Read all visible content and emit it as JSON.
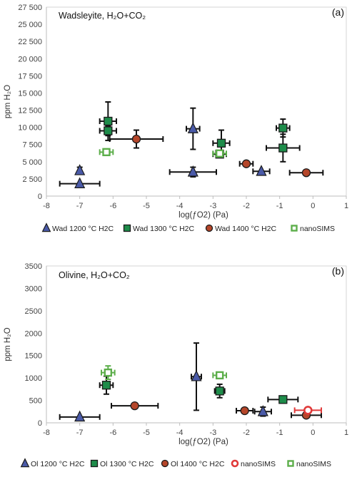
{
  "colors": {
    "blue": "#4a5aa8",
    "green": "#1e8c4a",
    "brown": "#b5462a",
    "nano_green": "#5cae4a",
    "nano_red": "#e03a3a",
    "err": "#111111"
  },
  "chart_data": [
    {
      "type": "scatter",
      "title": "Wadsleyite, H₂O+CO₂",
      "panel_label": "(a)",
      "xlabel": "log(ƒO2) (Pa)",
      "ylabel": "ppm H₂O",
      "xlim": [
        -8,
        1
      ],
      "ylim": [
        0,
        27500
      ],
      "xticks": [
        -8,
        -7,
        -6,
        -5,
        -4,
        -3,
        -2,
        -1,
        0,
        1
      ],
      "yticks": [
        0,
        2500,
        5000,
        7500,
        10000,
        12500,
        15000,
        17500,
        20000,
        22500,
        25000,
        27500
      ],
      "ytick_labels": [
        "0",
        "2 500",
        "5 000",
        "7 500",
        "10 000",
        "12 500",
        "15 000",
        "17 500",
        "20 000",
        "22 500",
        "25 000",
        "27 500"
      ],
      "legend_position": "bottom",
      "series": [
        {
          "name": "Wad 1200 °C H2C",
          "marker": "triangle",
          "color": "blue",
          "points": [
            {
              "x": -7.0,
              "y": 3700,
              "xerr": [
                0,
                0
              ],
              "yerr": [
                500,
                500
              ]
            },
            {
              "x": -7.0,
              "y": 1800,
              "xerr": [
                0.6,
                0.6
              ],
              "yerr": [
                0,
                0
              ]
            },
            {
              "x": -3.6,
              "y": 9800,
              "xerr": [
                0.2,
                0.2
              ],
              "yerr": [
                3000,
                3000
              ]
            },
            {
              "x": -3.6,
              "y": 3500,
              "xerr": [
                0.7,
                0.7
              ],
              "yerr": [
                700,
                700
              ]
            },
            {
              "x": -1.55,
              "y": 3600,
              "xerr": [
                0.25,
                0.25
              ],
              "yerr": [
                0,
                0
              ]
            }
          ]
        },
        {
          "name": "Wad 1300 °C H2C",
          "marker": "square",
          "color": "green",
          "points": [
            {
              "x": -6.15,
              "y": 10900,
              "xerr": [
                0.25,
                0.25
              ],
              "yerr": [
                2800,
                2800
              ]
            },
            {
              "x": -6.15,
              "y": 9500,
              "xerr": [
                0.25,
                0.25
              ],
              "yerr": [
                700,
                700
              ]
            },
            {
              "x": -2.75,
              "y": 7700,
              "xerr": [
                0.25,
                0.25
              ],
              "yerr": [
                1900,
                1900
              ]
            },
            {
              "x": -2.8,
              "y": 6100,
              "xerr": [
                0.2,
                0.2
              ],
              "yerr": [
                0,
                0
              ]
            },
            {
              "x": -0.9,
              "y": 9900,
              "xerr": [
                0.2,
                0.2
              ],
              "yerr": [
                1300,
                1300
              ]
            },
            {
              "x": -0.9,
              "y": 7000,
              "xerr": [
                0.5,
                0.5
              ],
              "yerr": [
                2000,
                2000
              ]
            }
          ]
        },
        {
          "name": "Wad 1400 °C H2C",
          "marker": "circle",
          "color": "brown",
          "points": [
            {
              "x": -5.3,
              "y": 8300,
              "xerr": [
                0.8,
                0.8
              ],
              "yerr": [
                1300,
                1300
              ]
            },
            {
              "x": -2.0,
              "y": 4700,
              "xerr": [
                0.2,
                0.2
              ],
              "yerr": [
                0,
                0
              ]
            },
            {
              "x": -0.2,
              "y": 3400,
              "xerr": [
                0.5,
                0.5
              ],
              "yerr": [
                0,
                0
              ]
            }
          ]
        },
        {
          "name": "nanoSIMS",
          "marker": "open-square",
          "color": "nano_green",
          "points": [
            {
              "x": -6.2,
              "y": 6400,
              "xerr": [
                0.2,
                0.2
              ],
              "yerr": [
                0,
                0
              ]
            },
            {
              "x": -2.8,
              "y": 6200,
              "xerr": [
                0.2,
                0.2
              ],
              "yerr": [
                0,
                0
              ]
            }
          ]
        }
      ]
    },
    {
      "type": "scatter",
      "title": "Olivine, H₂O+CO₂",
      "panel_label": "(b)",
      "xlabel": "log(ƒO2) (Pa)",
      "ylabel": "ppm H₂O",
      "xlim": [
        -8,
        1
      ],
      "ylim": [
        0,
        3500
      ],
      "xticks": [
        -8,
        -7,
        -6,
        -5,
        -4,
        -3,
        -2,
        -1,
        0,
        1
      ],
      "yticks": [
        0,
        500,
        1000,
        1500,
        2000,
        2500,
        3000,
        3500
      ],
      "ytick_labels": [
        "0",
        "500",
        "1000",
        "1500",
        "2000",
        "2500",
        "3000",
        "3500"
      ],
      "legend_position": "bottom",
      "series": [
        {
          "name": "Ol 1200 °C H2C",
          "marker": "triangle",
          "color": "blue",
          "points": [
            {
              "x": -7.0,
              "y": 130,
              "xerr": [
                0.6,
                0.6
              ],
              "yerr": [
                0,
                0
              ]
            },
            {
              "x": -3.5,
              "y": 1030,
              "xerr": [
                0.15,
                0.15
              ],
              "yerr": [
                750,
                750
              ]
            },
            {
              "x": -1.5,
              "y": 250,
              "xerr": [
                0.25,
                0.25
              ],
              "yerr": [
                100,
                100
              ]
            }
          ]
        },
        {
          "name": "Ol 1300 °C H2C",
          "marker": "square",
          "color": "green",
          "points": [
            {
              "x": -6.2,
              "y": 840,
              "xerr": [
                0.2,
                0.2
              ],
              "yerr": [
                200,
                200
              ]
            },
            {
              "x": -2.8,
              "y": 710,
              "xerr": [
                0.15,
                0.15
              ],
              "yerr": [
                150,
                150
              ]
            },
            {
              "x": -0.9,
              "y": 520,
              "xerr": [
                0.45,
                0.45
              ],
              "yerr": [
                0,
                0
              ]
            }
          ]
        },
        {
          "name": "Ol 1400 °C H2C",
          "marker": "circle",
          "color": "brown",
          "points": [
            {
              "x": -5.35,
              "y": 380,
              "xerr": [
                0.7,
                0.7
              ],
              "yerr": [
                0,
                0
              ]
            },
            {
              "x": -2.05,
              "y": 270,
              "xerr": [
                0.25,
                0.25
              ],
              "yerr": [
                0,
                0
              ]
            },
            {
              "x": -0.2,
              "y": 170,
              "xerr": [
                0.45,
                0.45
              ],
              "yerr": [
                0,
                0
              ]
            }
          ]
        },
        {
          "name": "nanoSIMS",
          "marker": "open-circle",
          "color": "nano_red",
          "points": [
            {
              "x": -0.15,
              "y": 280,
              "xerr": [
                0.4,
                0.4
              ],
              "yerr": [
                0,
                0
              ]
            }
          ]
        },
        {
          "name": "nanoSIMS",
          "marker": "open-square",
          "color": "nano_green",
          "points": [
            {
              "x": -6.15,
              "y": 1120,
              "xerr": [
                0.2,
                0.2
              ],
              "yerr": [
                150,
                150
              ]
            },
            {
              "x": -2.8,
              "y": 1060,
              "xerr": [
                0.2,
                0.2
              ],
              "yerr": [
                0,
                0
              ]
            }
          ]
        }
      ]
    }
  ]
}
